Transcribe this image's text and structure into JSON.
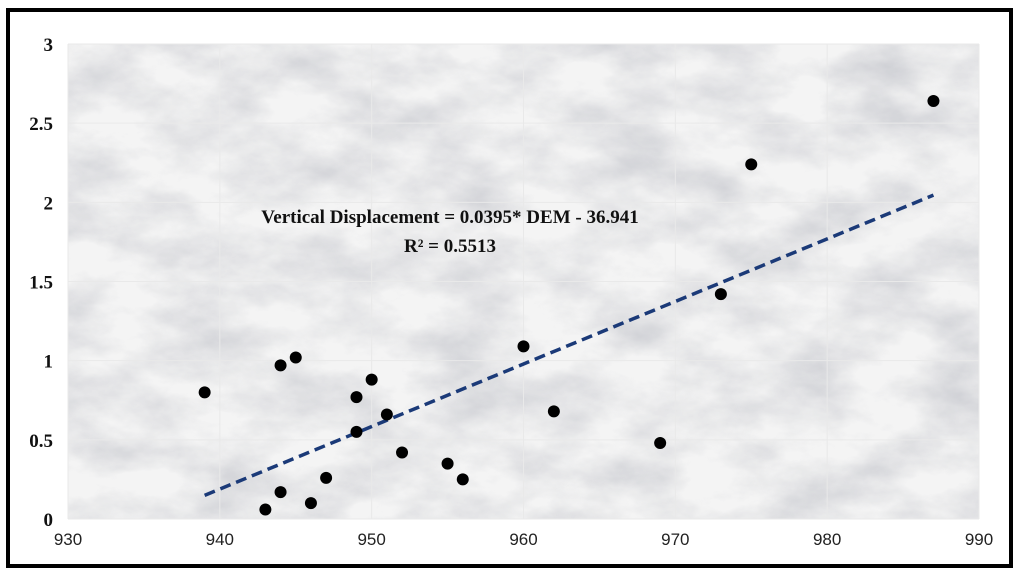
{
  "chart_data": {
    "type": "scatter",
    "title": "",
    "xlabel": "",
    "ylabel": "",
    "xlim": [
      930,
      990
    ],
    "ylim": [
      0,
      3
    ],
    "x_ticks": [
      "930",
      "940",
      "950",
      "960",
      "970",
      "980",
      "990"
    ],
    "y_ticks": [
      "0",
      "0.5",
      "1",
      "1.5",
      "2",
      "2.5",
      "3"
    ],
    "x_tick_values": [
      930,
      940,
      950,
      960,
      970,
      980,
      990
    ],
    "y_tick_values": [
      0,
      0.5,
      1,
      1.5,
      2,
      2.5,
      3
    ],
    "grid": true,
    "background": "marble texture",
    "points": [
      {
        "x": 939,
        "y": 0.8
      },
      {
        "x": 943,
        "y": 0.06
      },
      {
        "x": 944,
        "y": 0.17
      },
      {
        "x": 944,
        "y": 0.97
      },
      {
        "x": 945,
        "y": 1.02
      },
      {
        "x": 946,
        "y": 0.1
      },
      {
        "x": 947,
        "y": 0.26
      },
      {
        "x": 949,
        "y": 0.55
      },
      {
        "x": 949,
        "y": 0.77
      },
      {
        "x": 950,
        "y": 0.88
      },
      {
        "x": 951,
        "y": 0.66
      },
      {
        "x": 952,
        "y": 0.42
      },
      {
        "x": 955,
        "y": 0.35
      },
      {
        "x": 956,
        "y": 0.25
      },
      {
        "x": 960,
        "y": 1.09
      },
      {
        "x": 962,
        "y": 0.68
      },
      {
        "x": 969,
        "y": 0.48
      },
      {
        "x": 973,
        "y": 1.42
      },
      {
        "x": 975,
        "y": 2.24
      },
      {
        "x": 987,
        "y": 2.64
      }
    ],
    "trendline": {
      "slope": 0.0395,
      "intercept": -36.941,
      "x_range": [
        939,
        987
      ],
      "style": "dashed",
      "color": "#1b3a78"
    },
    "annotation": {
      "equation": "Vertical Displacement = 0.0395* DEM - 36.941",
      "r_squared": "R² = 0.5513"
    },
    "colors": {
      "point": "#000000",
      "grid": "#e9e9e9"
    }
  }
}
